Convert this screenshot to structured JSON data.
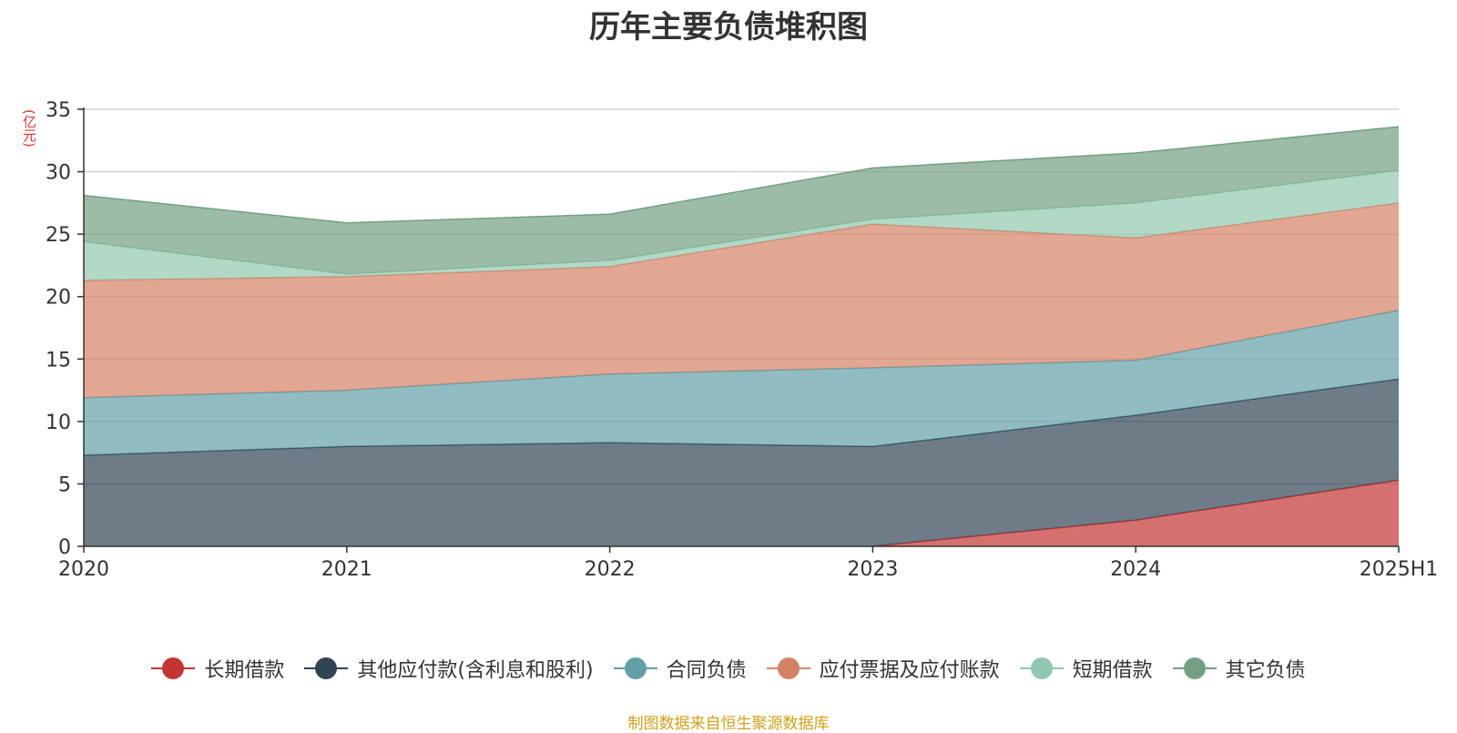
{
  "chart_data": {
    "type": "area",
    "stacked": true,
    "title": "历年主要负债堆积图",
    "unit_label": "(亿元)",
    "x": [
      "2020",
      "2021",
      "2022",
      "2023",
      "2024",
      "2025H1"
    ],
    "ylim": [
      0,
      35
    ],
    "yticks": [
      "0",
      "5",
      "10",
      "15",
      "20",
      "25",
      "30",
      "35"
    ],
    "grid": true,
    "legend_position": "bottom",
    "series": [
      {
        "name": "长期借款",
        "color": "#c23531",
        "values": [
          null,
          null,
          null,
          0,
          2.1,
          5.3
        ]
      },
      {
        "name": "其他应付款(含利息和股利)",
        "color": "#2f4554",
        "values": [
          7.3,
          8.0,
          8.3,
          8.0,
          8.4,
          8.1
        ]
      },
      {
        "name": "合同负债",
        "color": "#61a0a8",
        "values": [
          4.6,
          4.5,
          5.5,
          6.3,
          4.4,
          5.5
        ]
      },
      {
        "name": "应付票据及应付账款",
        "color": "#d48265",
        "values": [
          9.4,
          9.1,
          8.6,
          11.5,
          9.8,
          8.6
        ]
      },
      {
        "name": "短期借款",
        "color": "#91c7ae",
        "values": [
          3.1,
          0.2,
          0.5,
          0.4,
          2.8,
          2.6
        ]
      },
      {
        "name": "其它负债",
        "color": "#749f83",
        "values": [
          3.7,
          4.1,
          3.7,
          4.1,
          4.0,
          3.5
        ]
      }
    ]
  },
  "footer": "制图数据来自恒生聚源数据库"
}
